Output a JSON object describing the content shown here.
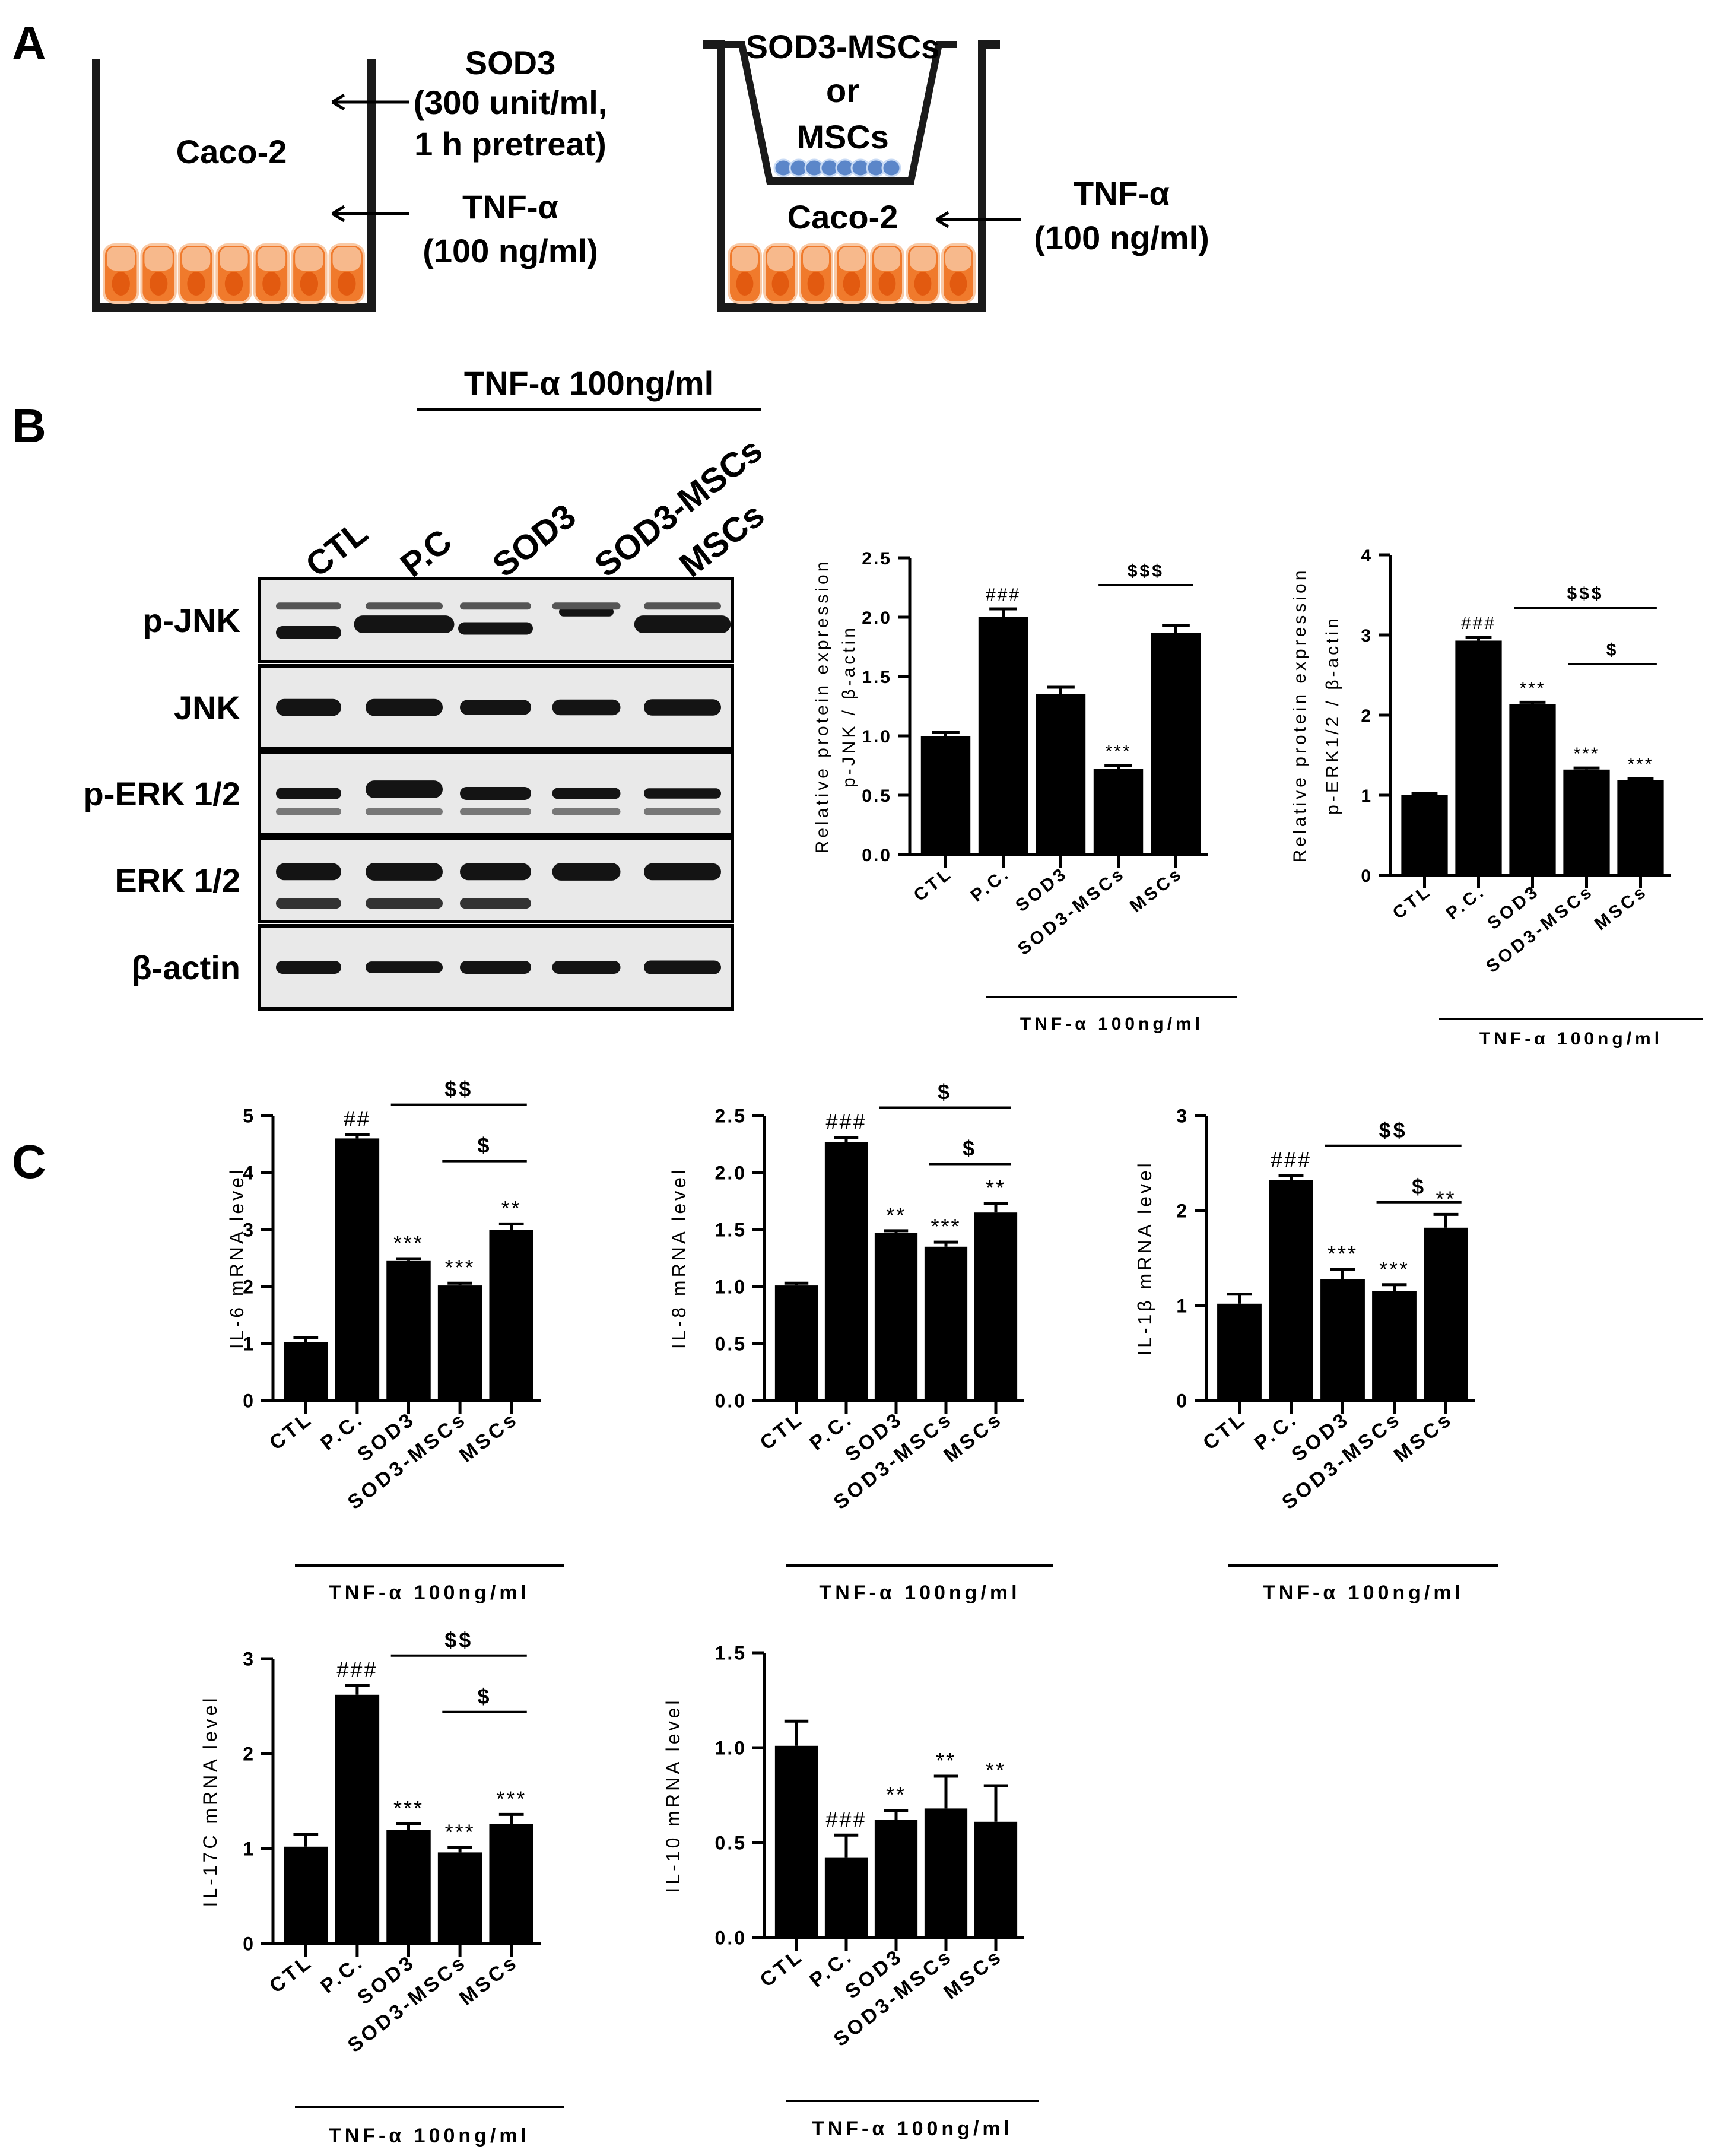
{
  "colors": {
    "bar": "#000000",
    "cell_body": "#f07a2c",
    "cell_light": "#f9c9a5",
    "nucleus": "#e25a10",
    "msc_fill": "#5b86c9",
    "msc_light": "#c9dbf5"
  },
  "panel_labels": {
    "a": "A",
    "b": "B",
    "c": "C"
  },
  "panel_a": {
    "left": {
      "cell_label": "Caco-2",
      "sod3": "SOD3",
      "sod3_conc": "(300 unit/ml,",
      "sod3_time": "1 h pretreat)",
      "tnf": "TNF-α",
      "tnf_conc": "(100 ng/ml)"
    },
    "right": {
      "insert_line1": "SOD3-MSCs",
      "insert_line2": "or",
      "insert_line3": "MSCs",
      "cell_label": "Caco-2",
      "tnf": "TNF-α",
      "tnf_conc": "(100 ng/ml)"
    }
  },
  "panel_b": {
    "blot_treatment": "TNF-α 100ng/ml",
    "lanes": [
      "CTL",
      "P.C",
      "SOD3",
      "SOD3-MSCs",
      "MSCs"
    ],
    "rows": [
      "p-JNK",
      "JNK",
      "p-ERK 1/2",
      "ERK 1/2",
      "β-actin"
    ]
  },
  "chart_data": [
    {
      "type": "bar",
      "categories": [
        "CTL",
        "P.C.",
        "SOD3",
        "SOD3-MSCs",
        "MSCs"
      ],
      "values": [
        1.0,
        2.0,
        1.35,
        0.72,
        1.87
      ],
      "errors": [
        0.03,
        0.07,
        0.06,
        0.03,
        0.06
      ],
      "ylabel_lines": [
        "Relative protein expression",
        "p-JNK / β-actin"
      ],
      "yticks": [
        "0.0",
        "0.5",
        "1.0",
        "1.5",
        "2.0",
        "2.5"
      ],
      "ylim": [
        0,
        2.5
      ],
      "marks": [
        "",
        "###",
        "",
        "***",
        ""
      ],
      "brackets": [
        {
          "from": 3,
          "to": 4,
          "label": "$$$"
        }
      ],
      "treatment": "TNF-α 100ng/ml"
    },
    {
      "type": "bar",
      "categories": [
        "CTL",
        "P.C.",
        "SOD3",
        "SOD3-MSCs",
        "MSCs"
      ],
      "values": [
        1.0,
        2.93,
        2.14,
        1.32,
        1.19
      ],
      "errors": [
        0.02,
        0.04,
        0.02,
        0.02,
        0.02
      ],
      "ylabel_lines": [
        "Relative protein expression",
        "p-ERK1/2 / β-actin"
      ],
      "yticks": [
        "0",
        "1",
        "2",
        "3",
        "4"
      ],
      "ylim": [
        0,
        4
      ],
      "marks": [
        "",
        "###",
        "***",
        "***",
        "***"
      ],
      "brackets": [
        {
          "from": 2,
          "to": 4,
          "label": "$$$"
        },
        {
          "from": 3,
          "to": 4,
          "label": "$"
        }
      ],
      "treatment": "TNF-α 100ng/ml"
    },
    {
      "type": "bar",
      "categories": [
        "CTL",
        "P.C.",
        "SOD3",
        "SOD3-MSCs",
        "MSCs"
      ],
      "values": [
        1.03,
        4.6,
        2.45,
        2.02,
        3.0
      ],
      "errors": [
        0.07,
        0.07,
        0.04,
        0.04,
        0.1
      ],
      "ylabel_lines": [
        "IL-6 mRNA level"
      ],
      "yticks": [
        "0",
        "1",
        "2",
        "3",
        "4",
        "5"
      ],
      "ylim": [
        0,
        5
      ],
      "marks": [
        "",
        "##",
        "***",
        "***",
        "**"
      ],
      "brackets": [
        {
          "from": 2,
          "to": 4,
          "label": "$$"
        },
        {
          "from": 3,
          "to": 4,
          "label": "$"
        }
      ],
      "treatment": "TNF-α 100ng/ml"
    },
    {
      "type": "bar",
      "categories": [
        "CTL",
        "P.C.",
        "SOD3",
        "SOD3-MSCs",
        "MSCs"
      ],
      "values": [
        1.01,
        2.27,
        1.47,
        1.35,
        1.65
      ],
      "errors": [
        0.02,
        0.04,
        0.02,
        0.04,
        0.08
      ],
      "ylabel_lines": [
        "IL-8 mRNA level"
      ],
      "yticks": [
        "0.0",
        "0.5",
        "1.0",
        "1.5",
        "2.0",
        "2.5"
      ],
      "ylim": [
        0,
        2.5
      ],
      "marks": [
        "",
        "###",
        "**",
        "***",
        "**"
      ],
      "brackets": [
        {
          "from": 2,
          "to": 4,
          "label": "$"
        },
        {
          "from": 3,
          "to": 4,
          "label": "$"
        }
      ],
      "treatment": "TNF-α 100ng/ml"
    },
    {
      "type": "bar",
      "categories": [
        "CTL",
        "P.C.",
        "SOD3",
        "SOD3-MSCs",
        "MSCs"
      ],
      "values": [
        1.02,
        2.32,
        1.28,
        1.15,
        1.82
      ],
      "errors": [
        0.1,
        0.05,
        0.1,
        0.07,
        0.14
      ],
      "ylabel_lines": [
        "IL-1β mRNA level"
      ],
      "yticks": [
        "0",
        "1",
        "2",
        "3"
      ],
      "ylim": [
        0,
        3
      ],
      "marks": [
        "",
        "###",
        "***",
        "***",
        "**"
      ],
      "brackets": [
        {
          "from": 2,
          "to": 4,
          "label": "$$"
        },
        {
          "from": 3,
          "to": 4,
          "label": "$"
        }
      ],
      "treatment": "TNF-α 100ng/ml"
    },
    {
      "type": "bar",
      "categories": [
        "CTL",
        "P.C.",
        "SOD3",
        "SOD3-MSCs",
        "MSCs"
      ],
      "values": [
        1.02,
        2.62,
        1.2,
        0.96,
        1.26
      ],
      "errors": [
        0.13,
        0.1,
        0.06,
        0.05,
        0.1
      ],
      "ylabel_lines": [
        "IL-17C mRNA level"
      ],
      "yticks": [
        "0",
        "1",
        "2",
        "3"
      ],
      "ylim": [
        0,
        3
      ],
      "marks": [
        "",
        "###",
        "***",
        "***",
        "***"
      ],
      "brackets": [
        {
          "from": 2,
          "to": 4,
          "label": "$$"
        },
        {
          "from": 3,
          "to": 4,
          "label": "$"
        }
      ],
      "treatment": "TNF-α 100ng/ml"
    },
    {
      "type": "bar",
      "categories": [
        "CTL",
        "P.C.",
        "SOD3",
        "SOD3-MSCs",
        "MSCs"
      ],
      "values": [
        1.01,
        0.42,
        0.62,
        0.68,
        0.61
      ],
      "errors": [
        0.13,
        0.12,
        0.05,
        0.17,
        0.19
      ],
      "ylabel_lines": [
        "IL-10 mRNA level"
      ],
      "yticks": [
        "0.0",
        "0.5",
        "1.0",
        "1.5"
      ],
      "ylim": [
        0,
        1.5
      ],
      "marks": [
        "",
        "###",
        "**",
        "**",
        "**"
      ],
      "brackets": [],
      "treatment": "TNF-α 100ng/ml"
    }
  ]
}
